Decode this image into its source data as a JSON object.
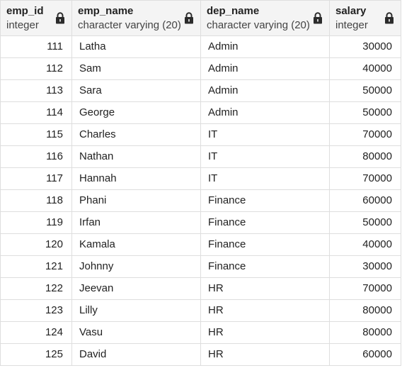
{
  "columns": [
    {
      "name": "emp_id",
      "type": "integer"
    },
    {
      "name": "emp_name",
      "type": "character varying (20)"
    },
    {
      "name": "dep_name",
      "type": "character varying (20)"
    },
    {
      "name": "salary",
      "type": "integer"
    }
  ],
  "rows": [
    {
      "emp_id": "111",
      "emp_name": "Latha",
      "dep_name": "Admin",
      "salary": "30000"
    },
    {
      "emp_id": "112",
      "emp_name": "Sam",
      "dep_name": "Admin",
      "salary": "40000"
    },
    {
      "emp_id": "113",
      "emp_name": "Sara",
      "dep_name": "Admin",
      "salary": "50000"
    },
    {
      "emp_id": "114",
      "emp_name": "George",
      "dep_name": "Admin",
      "salary": "50000"
    },
    {
      "emp_id": "115",
      "emp_name": "Charles",
      "dep_name": "IT",
      "salary": "70000"
    },
    {
      "emp_id": "116",
      "emp_name": "Nathan",
      "dep_name": "IT",
      "salary": "80000"
    },
    {
      "emp_id": "117",
      "emp_name": "Hannah",
      "dep_name": "IT",
      "salary": "70000"
    },
    {
      "emp_id": "118",
      "emp_name": "Phani",
      "dep_name": "Finance",
      "salary": "60000"
    },
    {
      "emp_id": "119",
      "emp_name": "Irfan",
      "dep_name": "Finance",
      "salary": "50000"
    },
    {
      "emp_id": "120",
      "emp_name": "Kamala",
      "dep_name": "Finance",
      "salary": "40000"
    },
    {
      "emp_id": "121",
      "emp_name": "Johnny",
      "dep_name": "Finance",
      "salary": "30000"
    },
    {
      "emp_id": "122",
      "emp_name": "Jeevan",
      "dep_name": "HR",
      "salary": "70000"
    },
    {
      "emp_id": "123",
      "emp_name": "Lilly",
      "dep_name": "HR",
      "salary": "80000"
    },
    {
      "emp_id": "124",
      "emp_name": "Vasu",
      "dep_name": "HR",
      "salary": "80000"
    },
    {
      "emp_id": "125",
      "emp_name": "David",
      "dep_name": "HR",
      "salary": "60000"
    }
  ],
  "icons": {
    "column_lock": "lock-icon"
  },
  "colors": {
    "header_bg": "#f4f4f4",
    "grid_line": "#dedede",
    "text": "#222222"
  }
}
